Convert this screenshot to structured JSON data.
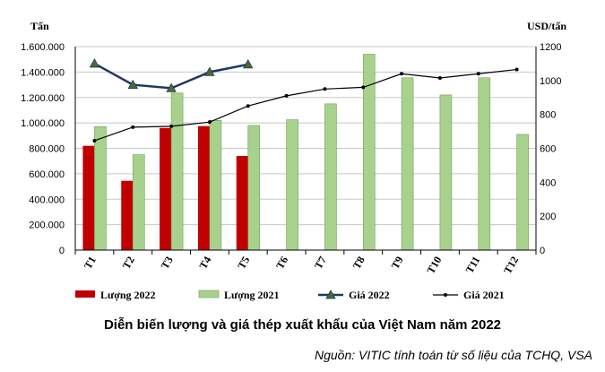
{
  "chart_data": {
    "type": "bar",
    "left_axis_unit": "Tấn",
    "right_axis_unit": "USD/tấn",
    "categories": [
      "T1",
      "T2",
      "T3",
      "T4",
      "T5",
      "T6",
      "T7",
      "T8",
      "T9",
      "T10",
      "T11",
      "T12"
    ],
    "left_ylim": [
      0,
      1600000
    ],
    "left_ticks": [
      "0",
      "200.000",
      "400.000",
      "600.000",
      "800.000",
      "1.000.000",
      "1.200.000",
      "1.400.000",
      "1.600.000"
    ],
    "right_ylim": [
      0,
      1200
    ],
    "right_ticks": [
      "0",
      "200",
      "400",
      "600",
      "800",
      "1000",
      "1200"
    ],
    "series": [
      {
        "name": "Lượng 2022",
        "type": "bar",
        "axis": "left",
        "color": "#c00000",
        "values": [
          820000,
          545000,
          960000,
          975000,
          740000,
          null,
          null,
          null,
          null,
          null,
          null,
          null
        ]
      },
      {
        "name": "Lượng 2021",
        "type": "bar",
        "axis": "left",
        "color": "#a9d18e",
        "values": [
          970000,
          750000,
          1235000,
          1020000,
          980000,
          1025000,
          1150000,
          1540000,
          1355000,
          1220000,
          1355000,
          910000
        ]
      },
      {
        "name": "Giá 2022",
        "type": "line",
        "axis": "right",
        "color": "#1f3864",
        "marker": "triangle",
        "values": [
          1100,
          975,
          955,
          1050,
          1095,
          null,
          null,
          null,
          null,
          null,
          null,
          null
        ]
      },
      {
        "name": "Giá 2021",
        "type": "line",
        "axis": "right",
        "color": "#000000",
        "marker": "dot",
        "values": [
          645,
          725,
          730,
          755,
          850,
          910,
          950,
          960,
          1040,
          1015,
          1040,
          1065
        ]
      }
    ],
    "legend_position": "bottom",
    "grid": "horizontal"
  },
  "caption": "Diễn biến lượng và giá thép xuất khẩu của Việt Nam năm 2022",
  "source": "Nguồn: VITIC tính toán từ số liệu của TCHQ, VSA"
}
